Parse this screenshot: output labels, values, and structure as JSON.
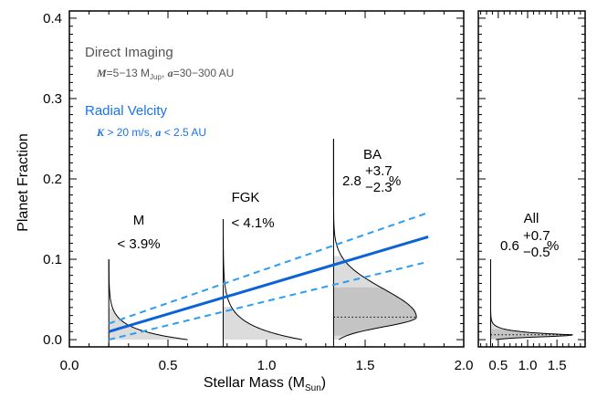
{
  "chart_data": {
    "type": "line",
    "xlabel": "Stellar Mass (M",
    "xlabel_sub": "Sun",
    "xlabel_end": ")",
    "ylabel": "Planet Fraction",
    "ylim": [
      -0.009,
      0.409
    ],
    "xlim_main": [
      0.0,
      2.0
    ],
    "xlim_all": [
      0.16,
      1.98
    ],
    "xticks_main": [
      "0.0",
      "0.5",
      "1.0",
      "1.5",
      "2.0"
    ],
    "xticks_main_values": [
      0.0,
      0.5,
      1.0,
      1.5,
      2.0
    ],
    "xticks_all": [
      "0.5",
      "1.0",
      "1.5"
    ],
    "xticks_all_values": [
      0.5,
      1.0,
      1.5
    ],
    "yticks": [
      "0.0",
      "0.1",
      "0.2",
      "0.3",
      "0.4"
    ],
    "yticks_values": [
      0.0,
      0.1,
      0.2,
      0.3,
      0.4
    ],
    "legend": {
      "direct_imaging": {
        "title": "Direct Imaging",
        "detail_M": "M",
        "detail_1": "=5−13 M",
        "detail_sub": "Jup",
        "detail_2": ", ",
        "detail_a": "a",
        "detail_3": "=30−300 AU"
      },
      "radial_velocity": {
        "title": "Radial Velcity",
        "detail_K": "K",
        "detail_1": " > 20 m/s, ",
        "detail_a": "a",
        "detail_2": " < 2.5 AU"
      }
    },
    "fit": {
      "x": [
        0.2,
        1.82
      ],
      "center": [
        0.01,
        0.128
      ],
      "upper": [
        0.02,
        0.158
      ],
      "lower": [
        0.0,
        0.097
      ]
    },
    "posteriors": [
      {
        "name": "M",
        "label": "M",
        "value": "< 3.9%",
        "mass": 0.2,
        "peak_f": 0.0,
        "upper_limit": 0.039,
        "top": 0.1,
        "width": 0.4,
        "scale": 0.013
      },
      {
        "name": "FGK",
        "label": "FGK",
        "value": "< 4.1%",
        "mass": 0.78,
        "peak_f": 0.0,
        "upper_limit": 0.041,
        "top": 0.15,
        "width": 0.4,
        "scale": 0.018
      },
      {
        "name": "BA",
        "label": "BA",
        "value": "2.8",
        "plus": "+3.7",
        "minus": "−2.3",
        "unit": "%",
        "mass": 1.34,
        "median": 0.028,
        "lo": 0.005,
        "hi": 0.065,
        "top": 0.25,
        "width": 0.42
      },
      {
        "name": "All",
        "label": "All",
        "value": "0.6",
        "plus": "+0.7",
        "minus": "−0.5",
        "unit": "%",
        "mass": 0.37,
        "median": 0.006,
        "lo": 0.001,
        "hi": 0.013,
        "top": 0.1,
        "width": 1.4,
        "scale": 0.004
      }
    ],
    "colors": {
      "fit": "#0b63d6",
      "fit_band": "#2a9df4",
      "direct_imaging": "#555555",
      "radial_velocity": "#1a73e8",
      "fill_light": "#dcdcdc",
      "fill_dark": "#c4c4c4"
    }
  }
}
